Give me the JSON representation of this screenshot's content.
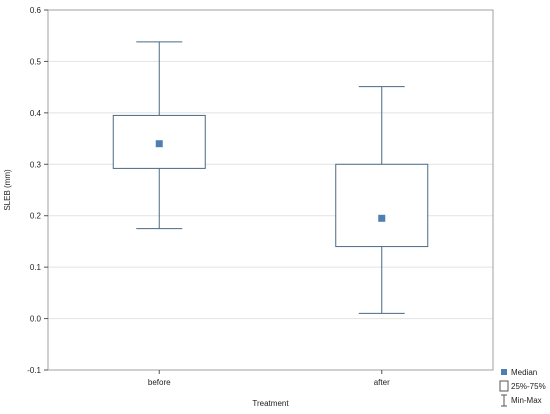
{
  "chart_data": {
    "type": "boxplot",
    "xlabel": "Treatment",
    "ylabel": "SLEB (mm)",
    "ylim": [
      -0.1,
      0.6
    ],
    "yticks": [
      -0.1,
      0.0,
      0.1,
      0.2,
      0.3,
      0.4,
      0.5,
      0.6
    ],
    "ytick_labels": [
      "-0.1",
      "0.0",
      "0.1",
      "0.2",
      "0.3",
      "0.4",
      "0.5",
      "0.6"
    ],
    "grid": true,
    "categories": [
      "before",
      "after"
    ],
    "boxes": [
      {
        "category": "before",
        "min": 0.175,
        "q1": 0.292,
        "median": 0.34,
        "q3": 0.395,
        "max": 0.538
      },
      {
        "category": "after",
        "min": 0.01,
        "q1": 0.14,
        "median": 0.195,
        "q3": 0.3,
        "max": 0.451
      }
    ],
    "legend": {
      "placement": "bottom-right",
      "entries": [
        {
          "label": "Median",
          "symbol": "square-marker"
        },
        {
          "label": "25%-75%",
          "symbol": "box"
        },
        {
          "label": "Min-Max",
          "symbol": "whisker"
        }
      ]
    },
    "colors": {
      "box": "#4a6a85",
      "median": "#4f7fb0",
      "grid": "#e2e2e2",
      "frame": "#a0a0a0"
    }
  }
}
